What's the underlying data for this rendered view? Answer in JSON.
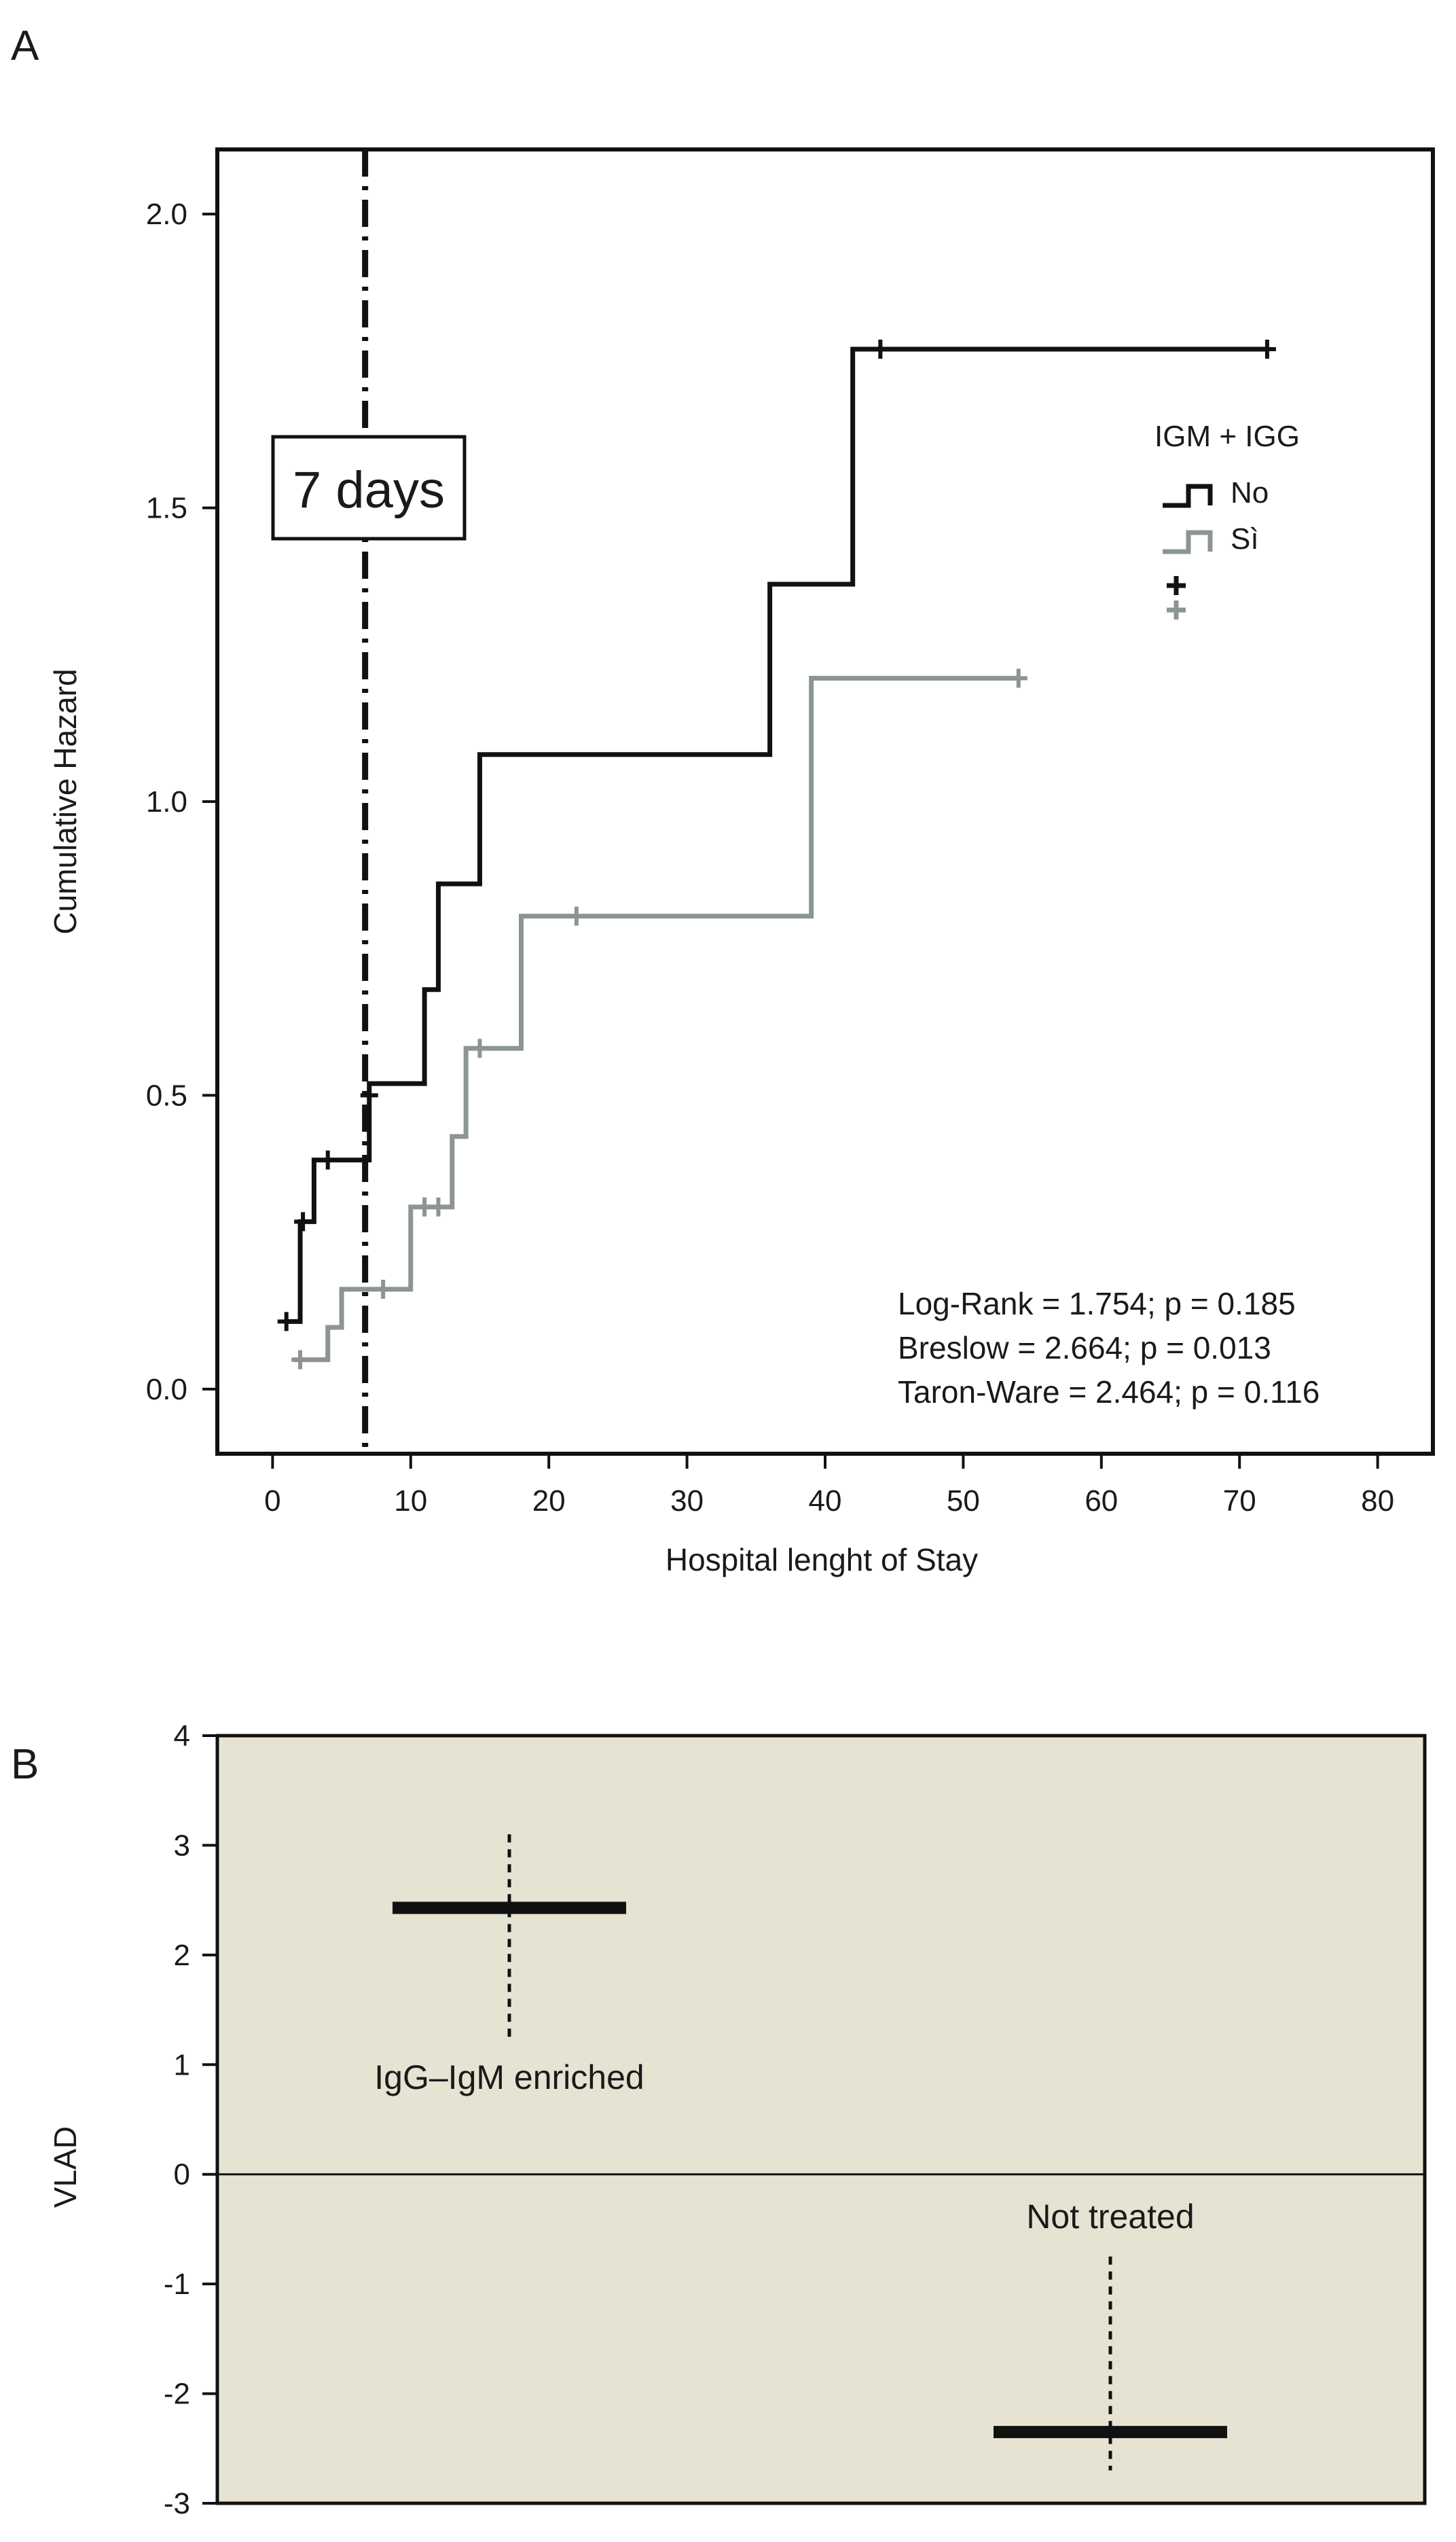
{
  "colors": {
    "no": "#111111",
    "si": "#8c9494",
    "panel_b_bg": "#e6e3d2"
  },
  "chart_data": [
    {
      "panel_label": "A",
      "type": "line",
      "subtype": "step",
      "xlabel": "Hospital lenght of Stay",
      "ylabel": "Cumulative Hazard",
      "xlim": [
        -4,
        84
      ],
      "ylim": [
        -0.11,
        2.11
      ],
      "xticks": [
        "0",
        "10",
        "20",
        "30",
        "40",
        "50",
        "60",
        "70",
        "80"
      ],
      "yticks": [
        "0.0",
        "0.5",
        "1.0",
        "1.5",
        "2.0"
      ],
      "reference_line": {
        "x": 6.7,
        "label": "7 days"
      },
      "legend": {
        "title": "IGM + IGG",
        "entries": [
          "No",
          "Sì"
        ],
        "placement": "top-right"
      },
      "series": [
        {
          "name": "No",
          "color": "#111111",
          "x": [
            1,
            2,
            3,
            7,
            11,
            12,
            15,
            36,
            42,
            72
          ],
          "y": [
            0.115,
            0.285,
            0.39,
            0.52,
            0.68,
            0.86,
            1.08,
            1.37,
            1.77,
            1.77
          ],
          "censored": [
            [
              1,
              0.115
            ],
            [
              2.2,
              0.285
            ],
            [
              4,
              0.39
            ],
            [
              7,
              0.5
            ],
            [
              44,
              1.77
            ],
            [
              72,
              1.77
            ]
          ]
        },
        {
          "name": "Sì",
          "color": "#8c9494",
          "x": [
            1.5,
            4,
            5,
            10,
            13,
            14,
            18,
            39,
            54
          ],
          "y": [
            0.05,
            0.105,
            0.17,
            0.31,
            0.43,
            0.58,
            0.805,
            1.21,
            1.21
          ],
          "censored": [
            [
              2,
              0.05
            ],
            [
              8,
              0.17
            ],
            [
              11,
              0.31
            ],
            [
              12,
              0.31
            ],
            [
              15,
              0.58
            ],
            [
              22,
              0.805
            ],
            [
              54,
              1.21
            ]
          ]
        }
      ],
      "annotations": [
        "Log-Rank = 1.754; p = 0.185",
        "Breslow = 2.664; p = 0.013",
        "Taron-Ware = 2.464; p = 0.116"
      ]
    },
    {
      "panel_label": "B",
      "type": "scatter",
      "ylabel": "VLAD",
      "ylim": [
        -3,
        4
      ],
      "yticks": [
        "4",
        "3",
        "2",
        "1",
        "0",
        "-1",
        "-2",
        "-3"
      ],
      "groups": [
        {
          "label": "IgG–IgM enriched",
          "value": 2.43,
          "range": [
            1.2,
            3.1
          ]
        },
        {
          "label": "Not treated",
          "value": -2.35,
          "range": [
            -2.7,
            -0.75
          ]
        }
      ]
    }
  ]
}
